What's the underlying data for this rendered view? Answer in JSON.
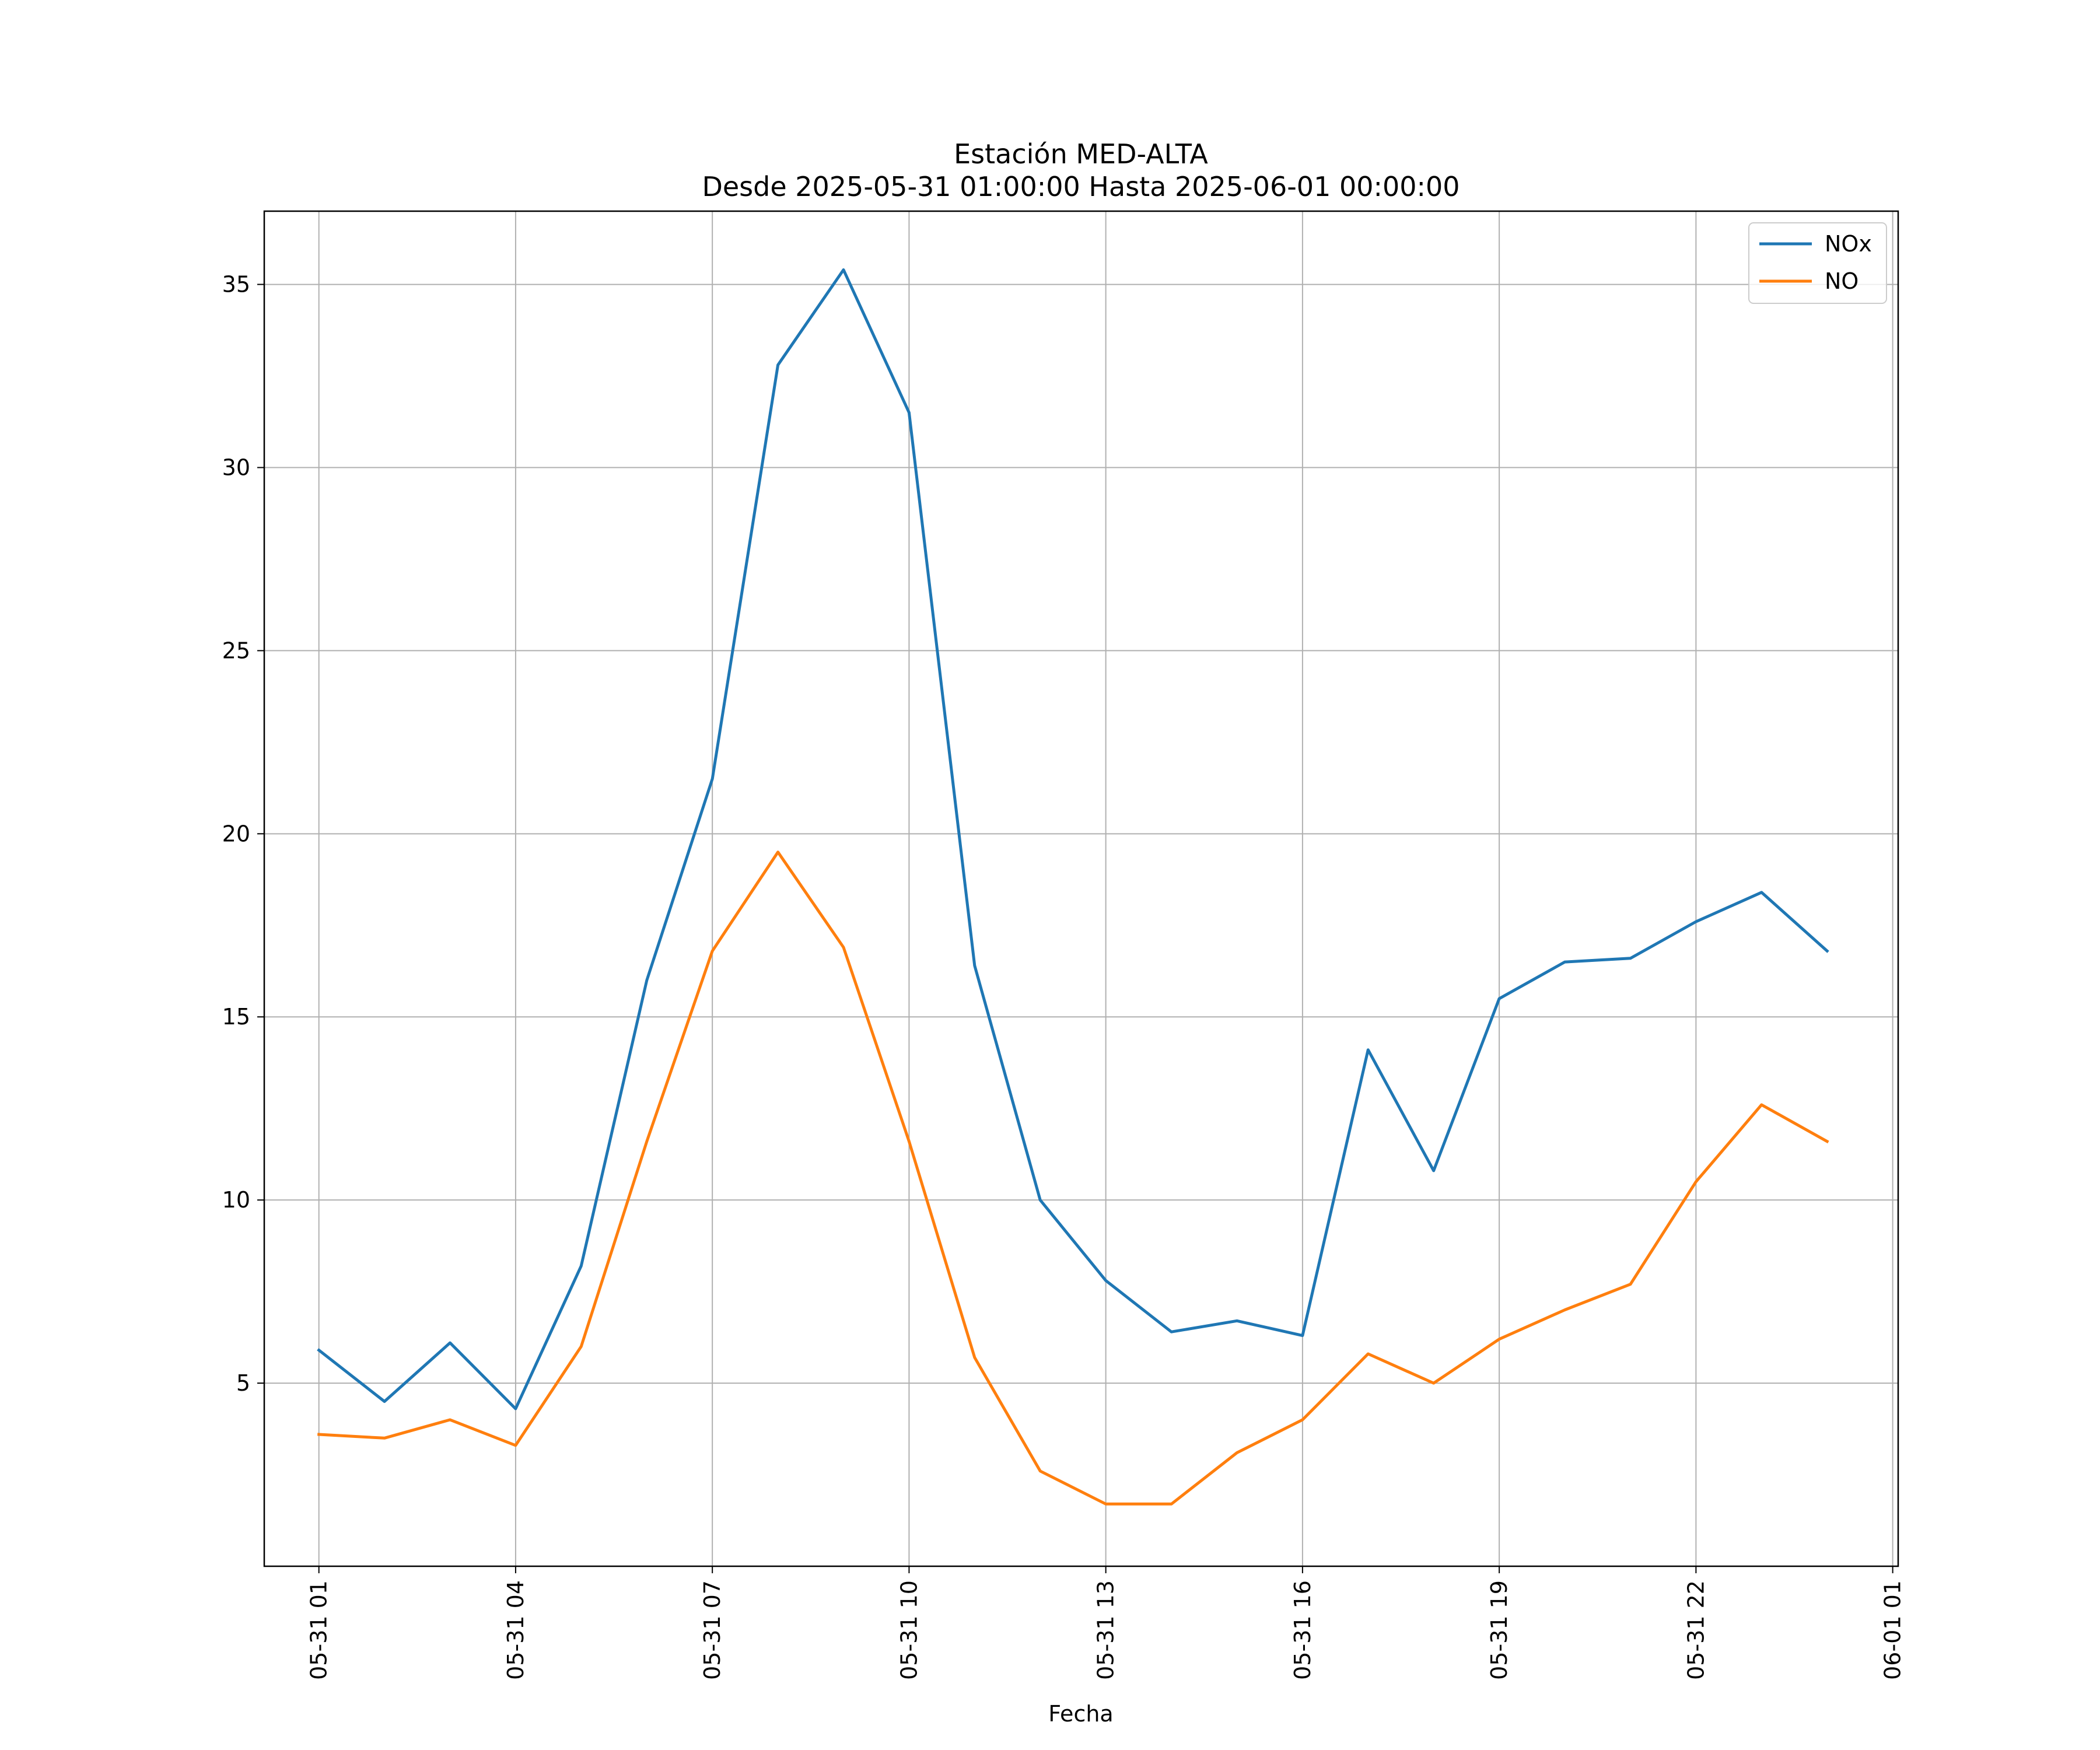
{
  "chart_data": {
    "type": "line",
    "title": "Estación MED-ALTA",
    "subtitle": "Desde 2025-05-31 01:00:00 Hasta 2025-06-01 00:00:00",
    "xlabel": "Fecha",
    "ylabel": "",
    "grid": true,
    "legend_position": "top-right",
    "x": [
      "05-31 01",
      "05-31 02",
      "05-31 03",
      "05-31 04",
      "05-31 05",
      "05-31 06",
      "05-31 07",
      "05-31 08",
      "05-31 09",
      "05-31 10",
      "05-31 11",
      "05-31 12",
      "05-31 13",
      "05-31 14",
      "05-31 15",
      "05-31 16",
      "05-31 17",
      "05-31 18",
      "05-31 19",
      "05-31 20",
      "05-31 21",
      "05-31 22",
      "05-31 23",
      "06-01 00"
    ],
    "x_tick_labels": [
      "05-31 01",
      "05-31 04",
      "05-31 07",
      "05-31 10",
      "05-31 13",
      "05-31 16",
      "05-31 19",
      "05-31 22",
      "06-01 01"
    ],
    "xlim": [
      "05-31 00:10",
      "06-01 01:05"
    ],
    "y_ticks": [
      5,
      10,
      15,
      20,
      25,
      30,
      35
    ],
    "ylim": [
      0.0,
      37.0
    ],
    "series": [
      {
        "name": "NOx",
        "color": "#1f77b4",
        "values": [
          5.9,
          4.5,
          6.1,
          4.3,
          8.2,
          16.0,
          21.5,
          32.8,
          35.4,
          31.5,
          16.4,
          10.0,
          7.8,
          6.4,
          6.7,
          6.3,
          14.1,
          10.8,
          15.5,
          16.5,
          16.6,
          17.6,
          18.4,
          16.8
        ]
      },
      {
        "name": "NO",
        "color": "#ff7f0e",
        "values": [
          3.6,
          3.5,
          4.0,
          3.3,
          6.0,
          11.6,
          16.8,
          19.5,
          16.9,
          11.6,
          5.7,
          2.6,
          1.7,
          1.7,
          3.1,
          4.0,
          5.8,
          5.0,
          6.2,
          7.0,
          7.7,
          10.5,
          12.6,
          11.6
        ]
      }
    ]
  }
}
